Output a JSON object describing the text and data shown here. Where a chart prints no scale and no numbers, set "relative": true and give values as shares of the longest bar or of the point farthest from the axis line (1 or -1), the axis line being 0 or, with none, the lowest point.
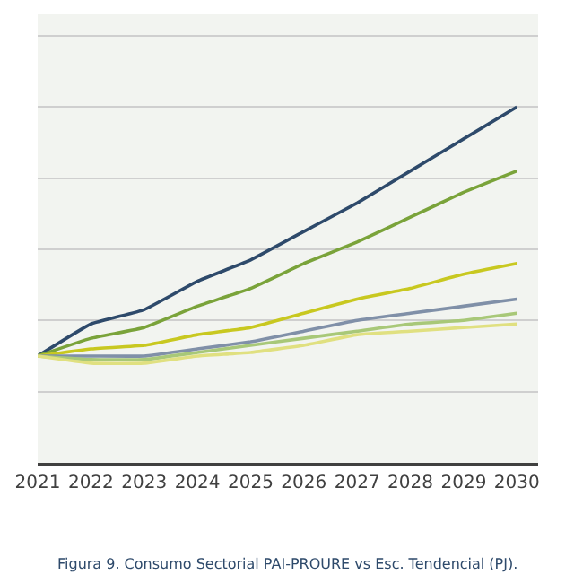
{
  "chart_data": {
    "type": "line",
    "title": "Figura 9. Consumo Sectorial PAI-PROURE vs Esc. Tendencial (PJ).",
    "relative": true,
    "grid": "y",
    "marker": "none",
    "line_style": "solid",
    "categories": [
      "2021",
      "2022",
      "2023",
      "2024",
      "2025",
      "2026",
      "2027",
      "2028",
      "2029",
      "2030"
    ],
    "series": [
      {
        "color": "#2e4a6b",
        "values": [
          0.3,
          0.39,
          0.43,
          0.51,
          0.57,
          0.65,
          0.73,
          0.82,
          0.91,
          1.0
        ]
      },
      {
        "color": "#7aa33a",
        "values": [
          0.3,
          0.35,
          0.38,
          0.44,
          0.49,
          0.56,
          0.62,
          0.69,
          0.76,
          0.82
        ]
      },
      {
        "color": "#c8c820",
        "values": [
          0.3,
          0.32,
          0.33,
          0.36,
          0.38,
          0.42,
          0.46,
          0.49,
          0.53,
          0.56
        ]
      },
      {
        "color": "#8090a8",
        "values": [
          0.3,
          0.3,
          0.3,
          0.32,
          0.34,
          0.37,
          0.4,
          0.42,
          0.44,
          0.46
        ]
      },
      {
        "color": "#a8c878",
        "values": [
          0.3,
          0.29,
          0.29,
          0.31,
          0.33,
          0.35,
          0.37,
          0.39,
          0.4,
          0.42
        ]
      },
      {
        "color": "#e0e080",
        "values": [
          0.3,
          0.28,
          0.28,
          0.3,
          0.31,
          0.33,
          0.36,
          0.37,
          0.38,
          0.39
        ]
      }
    ]
  }
}
